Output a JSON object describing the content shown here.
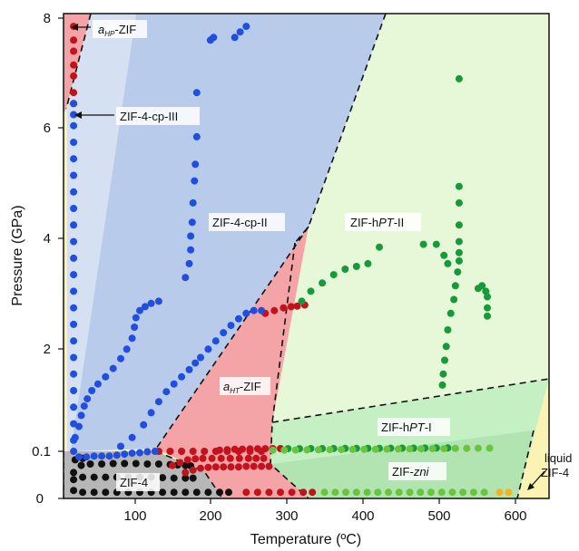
{
  "chart_data": {
    "type": "scatter",
    "xlabel": "Temperature (ºC)",
    "ylabel": "Pressure (GPa)",
    "x_ticks": [
      "100",
      "200",
      "300",
      "400",
      "500",
      "600"
    ],
    "y_ticks": [
      "0",
      "0.1",
      "2",
      "4",
      "6",
      "8"
    ],
    "xlim": [
      0,
      610
    ],
    "y_scale": "piecewise: 0–0.1 GPa expanded, 0.1–8 GPa linear",
    "grid": false,
    "colors": {
      "black": "#111111",
      "red": "#c2121c",
      "blue": "#1f4ee0",
      "green": "#179a3a",
      "lightgreen": "#6ac43f",
      "orange": "#f7b21c",
      "region_red": "#f4a3a6",
      "region_blue": "#b9cbea",
      "region_lightblue": "#d5e1f2",
      "region_green_light": "#e6f8d8",
      "region_green": "#c4f0c4",
      "region_yellow": "#fbf3b4",
      "region_gray": "#b7b7b7"
    },
    "regions": [
      {
        "name": "aHP-ZIF",
        "prefix": "a",
        "subscript": "HP",
        "suffix": "-ZIF"
      },
      {
        "name": "ZIF-4-cp-III",
        "text": "ZIF-4-cp-III"
      },
      {
        "name": "ZIF-4-cp-II",
        "text": "ZIF-4-cp-II"
      },
      {
        "name": "ZIF-hPT-II",
        "pre": "ZIF-h",
        "ital": "PT",
        "post": "-II"
      },
      {
        "name": "aHT-ZIF",
        "prefix": "a",
        "subscript": "HT",
        "suffix": "-ZIF"
      },
      {
        "name": "ZIF-hPT-I",
        "pre": "ZIF-h",
        "ital": "PT",
        "post": "-I"
      },
      {
        "name": "ZIF-zni",
        "pre": "ZIF-",
        "ital": "zni",
        "post": ""
      },
      {
        "name": "ZIF-4",
        "text": "ZIF-4"
      },
      {
        "name": "liquid ZIF-4",
        "line1": "liquid",
        "line2": "ZIF-4"
      }
    ],
    "series": [
      {
        "color": "black",
        "points": [
          [
            18,
            0.04
          ],
          [
            30,
            0.045
          ],
          [
            45,
            0.045
          ],
          [
            60,
            0.045
          ],
          [
            75,
            0.045
          ],
          [
            90,
            0.045
          ],
          [
            105,
            0.045
          ],
          [
            120,
            0.045
          ],
          [
            135,
            0.044
          ],
          [
            150,
            0.043
          ],
          [
            165,
            0.043
          ],
          [
            175,
            0.043
          ],
          [
            18,
            0.055
          ],
          [
            28,
            0.07
          ],
          [
            40,
            0.073
          ],
          [
            55,
            0.073
          ],
          [
            70,
            0.074
          ],
          [
            85,
            0.074
          ],
          [
            100,
            0.074
          ],
          [
            115,
            0.073
          ],
          [
            130,
            0.073
          ],
          [
            145,
            0.072
          ],
          [
            155,
            0.071
          ],
          [
            165,
            0.07
          ],
          [
            172,
            0.069
          ],
          [
            20,
            0.082
          ],
          [
            30,
            0.085
          ],
          [
            18,
            0.017
          ],
          [
            30,
            0.013
          ],
          [
            45,
            0.013
          ],
          [
            60,
            0.013
          ],
          [
            75,
            0.013
          ],
          [
            90,
            0.013
          ],
          [
            105,
            0.013
          ],
          [
            120,
            0.013
          ],
          [
            135,
            0.013
          ],
          [
            150,
            0.013
          ],
          [
            165,
            0.013
          ],
          [
            180,
            0.013
          ],
          [
            195,
            0.013
          ],
          [
            210,
            0.013
          ],
          [
            222,
            0.013
          ]
        ]
      },
      {
        "color": "red",
        "points": [
          [
            18,
            6.4
          ],
          [
            18,
            6.6
          ],
          [
            18,
            6.9
          ],
          [
            18,
            7.1
          ],
          [
            18,
            7.35
          ],
          [
            18,
            7.55
          ],
          [
            18,
            7.8
          ],
          [
            130,
            0.1
          ],
          [
            145,
            0.1
          ],
          [
            160,
            0.1
          ],
          [
            175,
            0.1
          ],
          [
            190,
            0.1
          ],
          [
            205,
            0.1
          ],
          [
            220,
            0.1
          ],
          [
            235,
            0.1
          ],
          [
            250,
            0.1
          ],
          [
            265,
            0.1
          ],
          [
            148,
            0.07
          ],
          [
            158,
            0.076
          ],
          [
            168,
            0.082
          ],
          [
            178,
            0.084
          ],
          [
            188,
            0.085
          ],
          [
            200,
            0.085
          ],
          [
            212,
            0.085
          ],
          [
            224,
            0.085
          ],
          [
            236,
            0.085
          ],
          [
            248,
            0.085
          ],
          [
            258,
            0.085
          ],
          [
            268,
            0.085
          ],
          [
            165,
            0.055
          ],
          [
            175,
            0.06
          ],
          [
            185,
            0.064
          ],
          [
            195,
            0.066
          ],
          [
            205,
            0.067
          ],
          [
            215,
            0.067
          ],
          [
            225,
            0.067
          ],
          [
            235,
            0.067
          ],
          [
            245,
            0.068
          ],
          [
            255,
            0.068
          ],
          [
            265,
            0.068
          ],
          [
            275,
            0.068
          ],
          [
            210,
            0.122
          ],
          [
            220,
            0.129
          ],
          [
            230,
            0.136
          ],
          [
            240,
            0.14
          ],
          [
            250,
            0.143
          ],
          [
            260,
            0.146
          ],
          [
            270,
            0.148
          ],
          [
            280,
            0.149
          ],
          [
            290,
            0.15
          ],
          [
            245,
            0.013
          ],
          [
            260,
            0.013
          ],
          [
            275,
            0.013
          ],
          [
            290,
            0.013
          ],
          [
            305,
            0.013
          ],
          [
            320,
            0.013
          ],
          [
            332,
            0.013
          ],
          [
            270,
            2.6
          ],
          [
            282,
            2.65
          ],
          [
            294,
            2.7
          ],
          [
            304,
            2.72
          ],
          [
            312,
            2.73
          ],
          [
            322,
            2.75
          ]
        ]
      },
      {
        "color": "blue",
        "points": [
          [
            18,
            0.1
          ],
          [
            18,
            0.3
          ],
          [
            18,
            0.6
          ],
          [
            18,
            0.9
          ],
          [
            18,
            1.2
          ],
          [
            18,
            1.5
          ],
          [
            18,
            1.8
          ],
          [
            18,
            2.1
          ],
          [
            18,
            2.4
          ],
          [
            18,
            2.7
          ],
          [
            18,
            3.0
          ],
          [
            18,
            3.3
          ],
          [
            18,
            3.6
          ],
          [
            18,
            3.9
          ],
          [
            18,
            4.2
          ],
          [
            18,
            4.5
          ],
          [
            18,
            4.8
          ],
          [
            18,
            5.1
          ],
          [
            18,
            5.4
          ],
          [
            18,
            5.7
          ],
          [
            18,
            6.0
          ],
          [
            18,
            6.2
          ],
          [
            18,
            6.4
          ],
          [
            25,
            0.088
          ],
          [
            35,
            0.088
          ],
          [
            45,
            0.09
          ],
          [
            55,
            0.09
          ],
          [
            65,
            0.09
          ],
          [
            75,
            0.092
          ],
          [
            85,
            0.094
          ],
          [
            95,
            0.096
          ],
          [
            105,
            0.097
          ],
          [
            115,
            0.099
          ],
          [
            125,
            0.1
          ],
          [
            20,
            0.35
          ],
          [
            25,
            0.55
          ],
          [
            28,
            0.75
          ],
          [
            32,
            0.92
          ],
          [
            36,
            1.05
          ],
          [
            42,
            1.2
          ],
          [
            50,
            1.32
          ],
          [
            60,
            1.45
          ],
          [
            70,
            1.6
          ],
          [
            80,
            1.78
          ],
          [
            88,
            1.95
          ],
          [
            95,
            2.15
          ],
          [
            98,
            2.35
          ],
          [
            100,
            2.52
          ],
          [
            105,
            2.65
          ],
          [
            112,
            2.72
          ],
          [
            120,
            2.78
          ],
          [
            130,
            2.82
          ],
          [
            80,
            0.19
          ],
          [
            95,
            0.35
          ],
          [
            110,
            0.58
          ],
          [
            120,
            0.8
          ],
          [
            130,
            1.0
          ],
          [
            140,
            1.18
          ],
          [
            150,
            1.32
          ],
          [
            160,
            1.45
          ],
          [
            170,
            1.58
          ],
          [
            178,
            1.7
          ],
          [
            185,
            1.8
          ],
          [
            195,
            1.95
          ],
          [
            205,
            2.1
          ],
          [
            215,
            2.25
          ],
          [
            225,
            2.38
          ],
          [
            235,
            2.5
          ],
          [
            245,
            2.6
          ],
          [
            255,
            2.65
          ],
          [
            265,
            2.65
          ],
          [
            165,
            3.25
          ],
          [
            170,
            3.5
          ],
          [
            172,
            3.75
          ],
          [
            172,
            4.0
          ],
          [
            174,
            4.25
          ],
          [
            175,
            4.6
          ],
          [
            177,
            5.0
          ],
          [
            178,
            5.3
          ],
          [
            180,
            5.8
          ],
          [
            180,
            6.6
          ],
          [
            198,
            7.55
          ],
          [
            202,
            7.6
          ],
          [
            230,
            7.6
          ],
          [
            237,
            7.7
          ],
          [
            245,
            7.8
          ]
        ]
      },
      {
        "color": "green",
        "points": [
          [
            318,
            2.82
          ],
          [
            330,
            3.0
          ],
          [
            345,
            3.15
          ],
          [
            360,
            3.3
          ],
          [
            375,
            3.4
          ],
          [
            390,
            3.45
          ],
          [
            405,
            3.5
          ],
          [
            420,
            3.8
          ],
          [
            478,
            3.85
          ],
          [
            495,
            3.85
          ],
          [
            505,
            3.65
          ],
          [
            510,
            3.5
          ],
          [
            525,
            6.85
          ],
          [
            525,
            4.9
          ],
          [
            525,
            4.6
          ],
          [
            525,
            4.2
          ],
          [
            525,
            3.9
          ],
          [
            525,
            3.7
          ],
          [
            525,
            3.55
          ],
          [
            523,
            3.35
          ],
          [
            520,
            3.1
          ],
          [
            518,
            2.85
          ],
          [
            514,
            2.6
          ],
          [
            510,
            2.3
          ],
          [
            508,
            2.0
          ],
          [
            506,
            1.75
          ],
          [
            504,
            1.5
          ],
          [
            503,
            1.3
          ],
          [
            550,
            3.05
          ],
          [
            555,
            3.1
          ],
          [
            560,
            3.0
          ],
          [
            562,
            2.9
          ],
          [
            562,
            2.7
          ],
          [
            562,
            2.55
          ],
          [
            300,
            0.147
          ],
          [
            315,
            0.148
          ],
          [
            330,
            0.149
          ],
          [
            345,
            0.15
          ],
          [
            360,
            0.151
          ],
          [
            375,
            0.152
          ],
          [
            390,
            0.153
          ],
          [
            405,
            0.154
          ],
          [
            420,
            0.155
          ],
          [
            435,
            0.156
          ],
          [
            450,
            0.157
          ],
          [
            465,
            0.158
          ],
          [
            480,
            0.159
          ],
          [
            495,
            0.16
          ],
          [
            510,
            0.161
          ]
        ]
      },
      {
        "color": "lightgreen",
        "points": [
          [
            280,
            0.12
          ],
          [
            295,
            0.122
          ],
          [
            310,
            0.124
          ],
          [
            325,
            0.126
          ],
          [
            340,
            0.128
          ],
          [
            355,
            0.13
          ],
          [
            370,
            0.132
          ],
          [
            385,
            0.134
          ],
          [
            400,
            0.136
          ],
          [
            415,
            0.138
          ],
          [
            430,
            0.14
          ],
          [
            445,
            0.142
          ],
          [
            460,
            0.144
          ],
          [
            475,
            0.146
          ],
          [
            490,
            0.148
          ],
          [
            505,
            0.15
          ],
          [
            520,
            0.152
          ],
          [
            535,
            0.154
          ],
          [
            550,
            0.156
          ],
          [
            565,
            0.158
          ],
          [
            348,
            0.013
          ],
          [
            362,
            0.013
          ],
          [
            376,
            0.013
          ],
          [
            390,
            0.013
          ],
          [
            404,
            0.013
          ],
          [
            418,
            0.013
          ],
          [
            432,
            0.013
          ],
          [
            446,
            0.013
          ],
          [
            460,
            0.013
          ],
          [
            474,
            0.013
          ],
          [
            488,
            0.013
          ],
          [
            502,
            0.013
          ],
          [
            516,
            0.013
          ],
          [
            530,
            0.013
          ],
          [
            544,
            0.013
          ],
          [
            558,
            0.013
          ]
        ]
      },
      {
        "color": "orange",
        "points": [
          [
            578,
            0.013
          ],
          [
            590,
            0.013
          ]
        ]
      }
    ]
  }
}
